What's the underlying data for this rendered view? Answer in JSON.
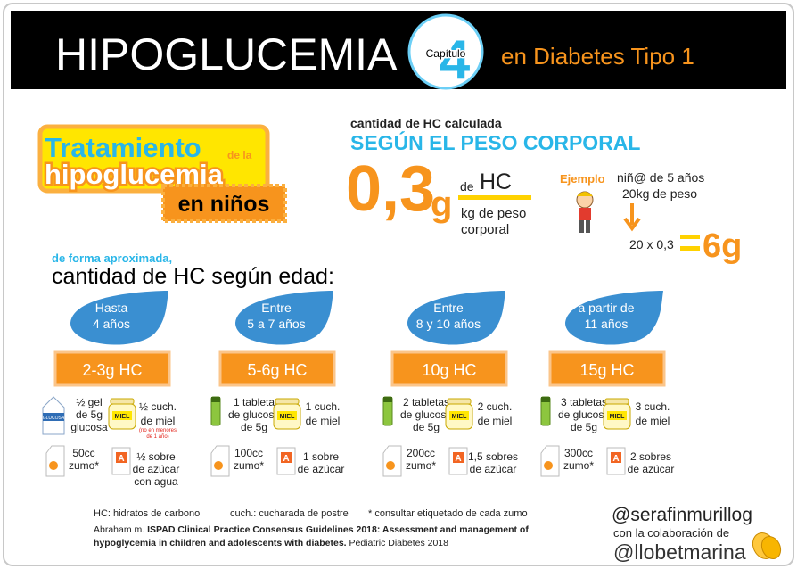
{
  "header": {
    "title": "HIPOGLUCEMIA",
    "chapter_label": "Capítulo",
    "chapter_number": "4",
    "subtitle": "en Diabetes Tipo 1"
  },
  "badge": {
    "line1": "Tratamiento",
    "line1_small": "de la",
    "line2": "hipoglucemia",
    "line3": "en niños"
  },
  "formula": {
    "intro": "cantidad de HC calculada",
    "heading": "SEGÚN EL PESO CORPORAL",
    "value": "0,3",
    "unit": "g",
    "prefix": "de",
    "numerator": "HC",
    "denominator": [
      "kg de peso",
      "corporal"
    ]
  },
  "example": {
    "label": "Ejemplo",
    "lines": [
      "niñ@ de 5 años",
      "20kg de peso"
    ],
    "calc": "20 x 0,3",
    "result": "6g"
  },
  "age_section": {
    "note": "de forma aproximada,",
    "title": "cantidad de HC según edad:"
  },
  "icons": {
    "gel": "GLUCOSA",
    "honey": "MIEL",
    "sugar": "A"
  },
  "groups": [
    {
      "age": [
        "Hasta",
        "4 años"
      ],
      "amount": "2-3g HC",
      "items": [
        {
          "lines": [
            "½ gel",
            "de 5g",
            "glucosa"
          ]
        },
        {
          "lines": [
            "½ cuch.",
            "de miel"
          ],
          "note": [
            "(no en menores",
            "de 1 año)"
          ]
        },
        {
          "lines": [
            "50cc",
            "zumo*"
          ]
        },
        {
          "lines": [
            "½ sobre",
            "de azúcar",
            "con agua"
          ]
        }
      ]
    },
    {
      "age": [
        "Entre",
        "5 a 7 años"
      ],
      "amount": "5-6g HC",
      "items": [
        {
          "lines": [
            "1 tableta",
            "de glucosa",
            "de 5g"
          ]
        },
        {
          "lines": [
            "1 cuch.",
            "de miel"
          ]
        },
        {
          "lines": [
            "100cc",
            "zumo*"
          ]
        },
        {
          "lines": [
            "1 sobre",
            "de azúcar"
          ]
        }
      ]
    },
    {
      "age": [
        "Entre",
        "8 y 10 años"
      ],
      "amount": "10g HC",
      "items": [
        {
          "lines": [
            "2 tabletas",
            "de glucosa",
            "de 5g"
          ]
        },
        {
          "lines": [
            "2 cuch.",
            "de miel"
          ]
        },
        {
          "lines": [
            "200cc",
            "zumo*"
          ]
        },
        {
          "lines": [
            "1,5 sobres",
            "de azúcar"
          ]
        }
      ]
    },
    {
      "age": [
        "a partir de",
        "11 años"
      ],
      "amount": "15g HC",
      "items": [
        {
          "lines": [
            "3 tabletas",
            "de glucosa",
            "de 5g"
          ]
        },
        {
          "lines": [
            "3 cuch.",
            "de miel"
          ]
        },
        {
          "lines": [
            "300cc",
            "zumo*"
          ]
        },
        {
          "lines": [
            "2 sobres",
            "de azúcar"
          ]
        }
      ]
    }
  ],
  "footer": {
    "legend": [
      "HC: hidratos de carbono",
      "cuch.: cucharada de postre",
      "* consultar etiquetado de cada zumo"
    ],
    "reference": {
      "author": "Abraham m.",
      "title": [
        "ISPAD Clinical Practice Consensus Guidelines 2018: Assessment and management of",
        "hypoglycemia in children and adolescents with diabetes."
      ],
      "journal": "Pediatric Diabetes 2018"
    }
  },
  "credits": {
    "handle": "@serafinmurillog",
    "collab": "con la colaboración de",
    "collab_handle": "@llobetmarina"
  }
}
